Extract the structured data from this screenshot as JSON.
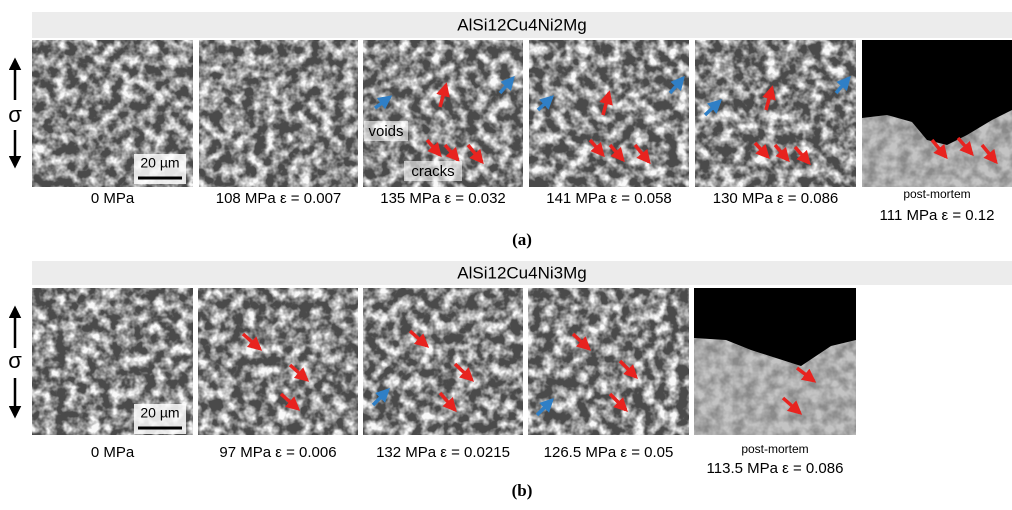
{
  "panels": [
    {
      "title": "AlSi12Cu4Ni2Mg",
      "label": "(a)",
      "stress_symbol": "σ",
      "scale_bar": "20 µm",
      "annotations": [
        "voids",
        "cracks"
      ],
      "images": [
        {
          "caption": "0 MPa"
        },
        {
          "caption": "108 MPa ε = 0.007"
        },
        {
          "caption": "135 MPa ε = 0.032"
        },
        {
          "caption": "141 MPa ε = 0.058"
        },
        {
          "caption": "130 MPa ε = 0.086"
        },
        {
          "note": "post-mortem",
          "caption": "111 MPa ε = 0.12"
        }
      ]
    },
    {
      "title": "AlSi12Cu4Ni3Mg",
      "label": "(b)",
      "stress_symbol": "σ",
      "scale_bar": "20 µm",
      "images": [
        {
          "caption": "0 MPa"
        },
        {
          "caption": "97 MPa ε = 0.006"
        },
        {
          "caption": "132 MPa ε = 0.0215"
        },
        {
          "caption": "126.5 MPa ε = 0.05"
        },
        {
          "note": "post-mortem",
          "caption": "113.5 MPa ε = 0.086"
        }
      ]
    }
  ]
}
